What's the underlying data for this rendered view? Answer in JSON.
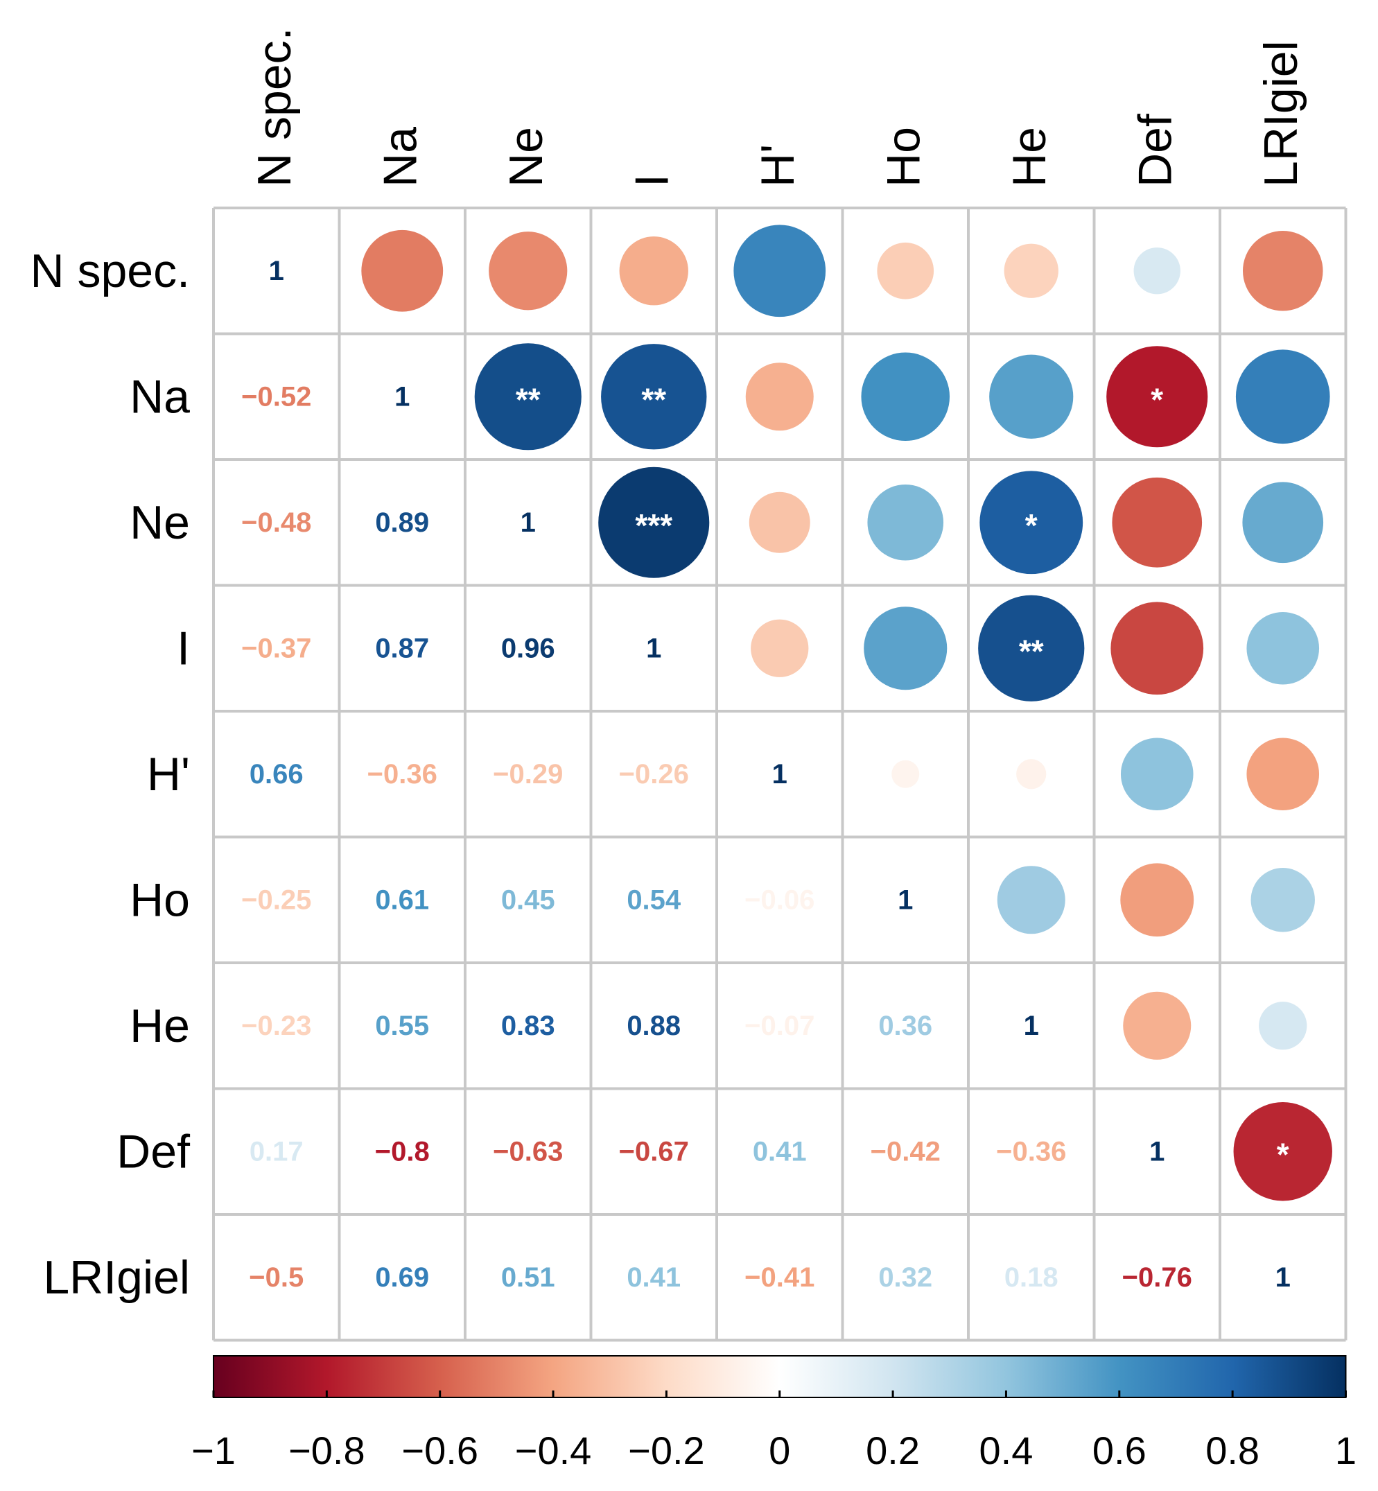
{
  "chart_data": {
    "type": "heatmap",
    "style": "correlation-matrix: circles in upper triangle, coefficients in lower triangle",
    "variables": [
      "N spec.",
      "Na",
      "Ne",
      "I",
      "H'",
      "Ho",
      "He",
      "Def",
      "LRIgiel"
    ],
    "correlation_matrix": [
      [
        1,
        -0.52,
        -0.48,
        -0.37,
        0.66,
        -0.25,
        -0.23,
        0.17,
        -0.5
      ],
      [
        -0.52,
        1,
        0.89,
        0.87,
        -0.36,
        0.61,
        0.55,
        -0.8,
        0.69
      ],
      [
        -0.48,
        0.89,
        1,
        0.96,
        -0.29,
        0.45,
        0.83,
        -0.63,
        0.51
      ],
      [
        -0.37,
        0.87,
        0.96,
        1,
        -0.26,
        0.54,
        0.88,
        -0.67,
        0.41
      ],
      [
        0.66,
        -0.36,
        -0.29,
        -0.26,
        1,
        -0.06,
        -0.07,
        0.41,
        -0.41
      ],
      [
        -0.25,
        0.61,
        0.45,
        0.54,
        -0.06,
        1,
        0.36,
        -0.42,
        0.32
      ],
      [
        -0.23,
        0.55,
        0.83,
        0.88,
        -0.07,
        0.36,
        1,
        -0.36,
        0.18
      ],
      [
        0.17,
        -0.8,
        -0.63,
        -0.67,
        0.41,
        -0.42,
        -0.36,
        1,
        -0.76
      ],
      [
        -0.5,
        0.69,
        0.51,
        0.41,
        -0.41,
        0.32,
        0.18,
        -0.76,
        1
      ]
    ],
    "lower_labels": [
      [
        "1"
      ],
      [
        "−0.52",
        "1"
      ],
      [
        "−0.48",
        "0.89",
        "1"
      ],
      [
        "−0.37",
        "0.87",
        "0.96",
        "1"
      ],
      [
        "0.66",
        "−0.36",
        "−0.29",
        "−0.26",
        "1"
      ],
      [
        "−0.25",
        "0.61",
        "0.45",
        "0.54",
        "−0.06",
        "1"
      ],
      [
        "−0.23",
        "0.55",
        "0.83",
        "0.88",
        "−0.07",
        "0.36",
        "1"
      ],
      [
        "0.17",
        "−0.8",
        "−0.63",
        "−0.67",
        "0.41",
        "−0.42",
        "−0.36",
        "1"
      ],
      [
        "−0.5",
        "0.69",
        "0.51",
        "0.41",
        "−0.41",
        "0.32",
        "0.18",
        "−0.76",
        "1"
      ]
    ],
    "significance": [
      {
        "row": 1,
        "col": 2,
        "label": "**"
      },
      {
        "row": 1,
        "col": 3,
        "label": "**"
      },
      {
        "row": 1,
        "col": 7,
        "label": "*"
      },
      {
        "row": 2,
        "col": 3,
        "label": "***"
      },
      {
        "row": 2,
        "col": 6,
        "label": "*"
      },
      {
        "row": 3,
        "col": 6,
        "label": "**"
      },
      {
        "row": 7,
        "col": 8,
        "label": "*"
      }
    ],
    "colorbar": {
      "range": [
        -1,
        1
      ],
      "ticks": [
        -1,
        -0.8,
        -0.6,
        -0.4,
        -0.2,
        0,
        0.2,
        0.4,
        0.6,
        0.8,
        1
      ],
      "tick_labels": [
        "−1",
        "−0.8",
        "−0.6",
        "−0.4",
        "−0.2",
        "0",
        "0.2",
        "0.4",
        "0.6",
        "0.8",
        "1"
      ],
      "palette": [
        "#67001F",
        "#B2182B",
        "#D6604D",
        "#F4A582",
        "#FDDBC7",
        "#FFFFFF",
        "#D1E5F0",
        "#92C5DE",
        "#4393C3",
        "#2166AC",
        "#053061"
      ],
      "placement": "bottom"
    }
  }
}
